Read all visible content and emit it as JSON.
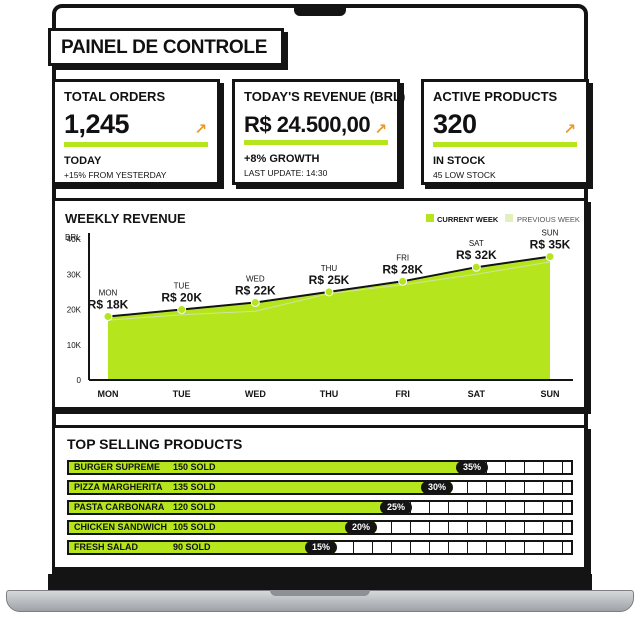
{
  "header": {
    "title": "PAINEL DE CONTROLE"
  },
  "stats": [
    {
      "label": "TOTAL ORDERS",
      "value": "1,245",
      "sub": "TODAY",
      "note": "+15% FROM YESTERDAY"
    },
    {
      "label": "TODAY'S REVENUE (BRL)",
      "value": "R$ 24.500,00",
      "sub": "+8% GROWTH",
      "note": "LAST UPDATE: 14:30"
    },
    {
      "label": "ACTIVE PRODUCTS",
      "value": "320",
      "sub": "IN STOCK",
      "note": "45 LOW STOCK"
    }
  ],
  "colors": {
    "accent": "#b5e61d",
    "accent_light": "#e2f0c0",
    "dark": "#141414",
    "arrow": "#e79a2a"
  },
  "icons": {
    "trend": "trend-up-arrow-icon"
  },
  "chart_data": {
    "type": "area",
    "title": "WEEKLY REVENUE",
    "ylabel": "BRL",
    "xlabel": "",
    "ylim": [
      0,
      40000
    ],
    "yticks": [
      0,
      10000,
      20000,
      30000,
      40000
    ],
    "ytick_labels": [
      "0",
      "10K",
      "20K",
      "30K",
      "40K"
    ],
    "categories": [
      "MON",
      "TUE",
      "WED",
      "THU",
      "FRI",
      "SAT",
      "SUN"
    ],
    "legend_position": "top-right",
    "series": [
      {
        "name": "CURRENT WEEK",
        "values": [
          18000,
          20000,
          22000,
          25000,
          28000,
          32000,
          35000
        ]
      },
      {
        "name": "PREVIOUS WEEK",
        "values": [
          17000,
          18500,
          19500,
          24500,
          27000,
          30000,
          33500
        ]
      }
    ],
    "data_labels": [
      "R$ 18K",
      "R$ 20K",
      "R$ 22K",
      "R$ 25K",
      "R$ 28K",
      "R$ 32K",
      "R$ 35K"
    ]
  },
  "top_products": {
    "title": "TOP SELLING PRODUCTS",
    "items": [
      {
        "name": "BURGER SUPREME",
        "sold": "150 SOLD",
        "pct_label": "35%",
        "fill": 0.83
      },
      {
        "name": "PIZZA MARGHERITA",
        "sold": "135 SOLD",
        "pct_label": "30%",
        "fill": 0.76
      },
      {
        "name": "PASTA CARBONARA",
        "sold": "120 SOLD",
        "pct_label": "25%",
        "fill": 0.68
      },
      {
        "name": "CHICKEN SANDWICH",
        "sold": "105 SOLD",
        "pct_label": "20%",
        "fill": 0.61
      },
      {
        "name": "FRESH SALAD",
        "sold": "90 SOLD",
        "pct_label": "15%",
        "fill": 0.53
      }
    ]
  }
}
